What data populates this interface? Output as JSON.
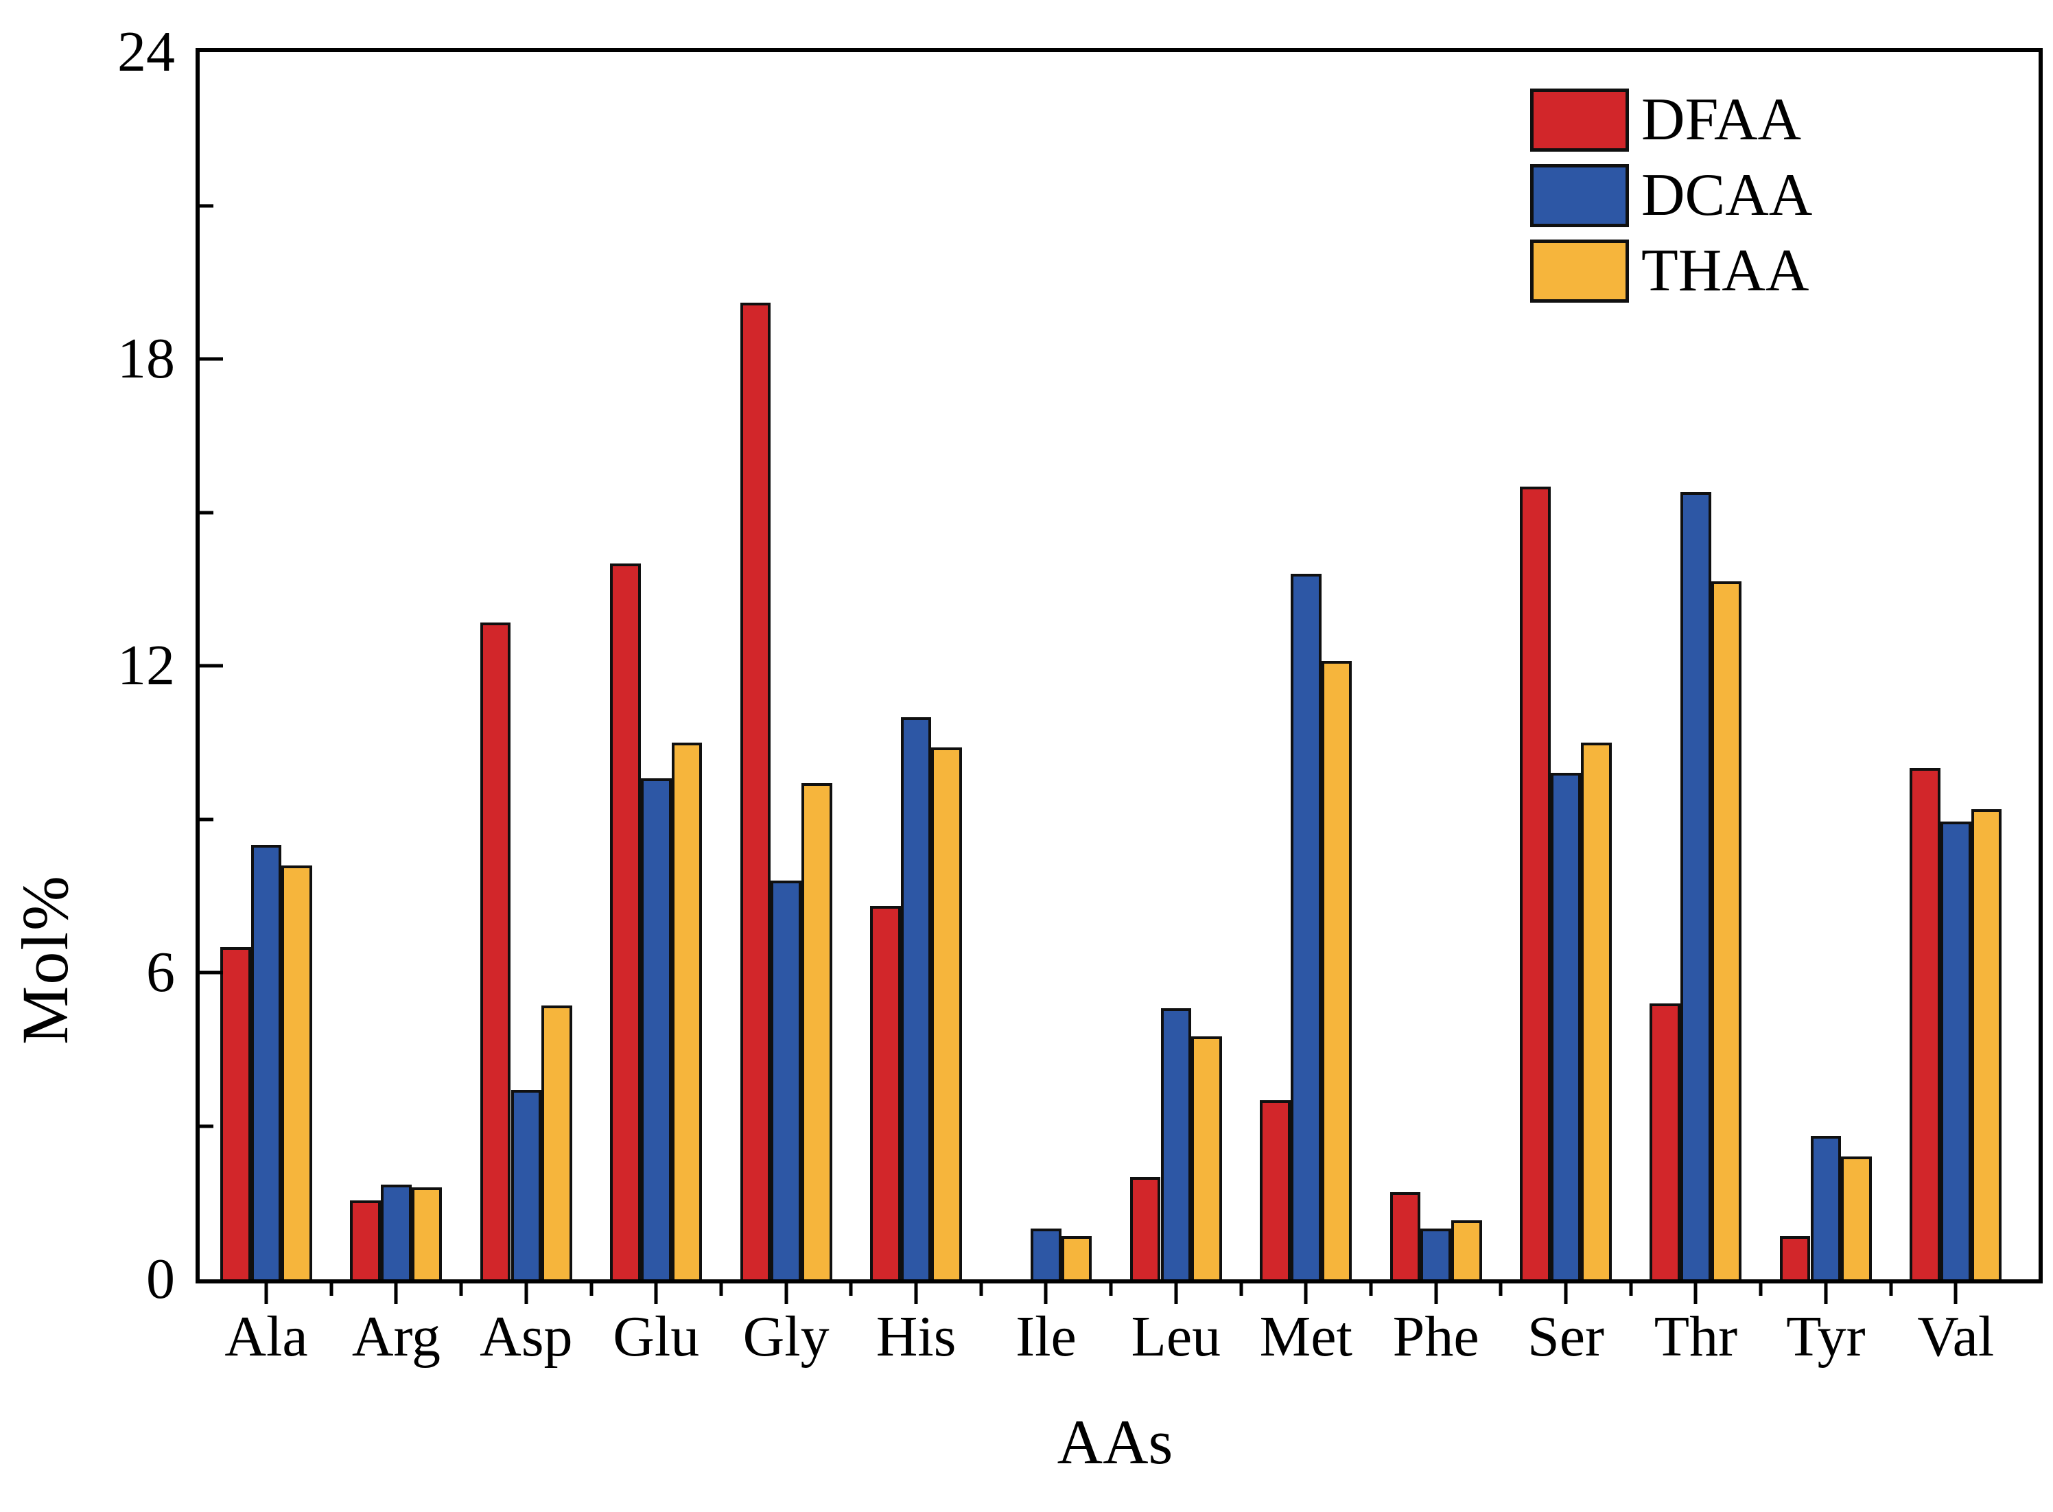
{
  "chart_data": {
    "type": "bar",
    "title": "",
    "xlabel": "AAs",
    "ylabel": "Mol%",
    "ylim": [
      0,
      24
    ],
    "yticks_major": [
      0,
      6,
      12,
      18,
      24
    ],
    "yticks_minor": [
      3,
      9,
      15,
      21
    ],
    "grid": "off",
    "legend_position": "top-right-inside",
    "categories": [
      "Ala",
      "Arg",
      "Asp",
      "Glu",
      "Gly",
      "His",
      "Ile",
      "Leu",
      "Met",
      "Phe",
      "Ser",
      "Thr",
      "Tyr",
      "Val"
    ],
    "series": [
      {
        "name": "DFAA",
        "color": "#d2262a",
        "values": [
          6.5,
          1.55,
          12.85,
          14.0,
          19.1,
          7.3,
          0,
          2.0,
          3.5,
          1.7,
          15.5,
          5.4,
          0.85,
          10.0
        ]
      },
      {
        "name": "DCAA",
        "color": "#2d57a5",
        "values": [
          8.5,
          1.85,
          3.7,
          9.8,
          7.8,
          11.0,
          1.0,
          5.3,
          13.8,
          1.0,
          9.9,
          15.4,
          2.8,
          8.95
        ]
      },
      {
        "name": "THAA",
        "color": "#f6b53c",
        "values": [
          8.1,
          1.8,
          5.35,
          10.5,
          9.7,
          10.4,
          0.85,
          4.75,
          12.1,
          1.15,
          10.5,
          13.65,
          2.4,
          9.2
        ]
      }
    ],
    "bar_border_color": "#101010",
    "axis_color": "#000000"
  },
  "labels": {
    "y_axis_title": "Mol%",
    "x_axis_title": "AAs"
  }
}
